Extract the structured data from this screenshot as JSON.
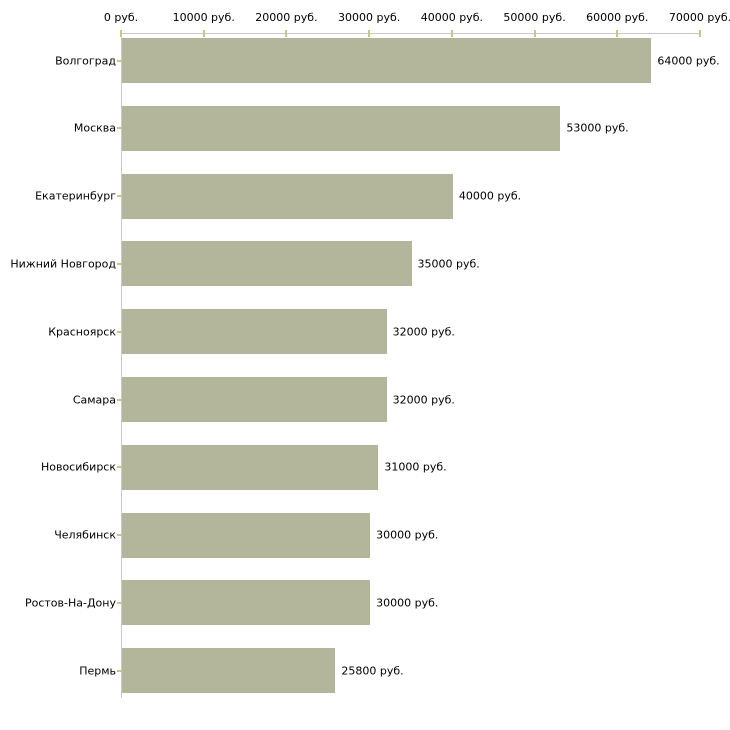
{
  "chart_data": {
    "type": "bar",
    "orientation": "horizontal",
    "title": "",
    "xlabel": "",
    "ylabel": "",
    "unit": "руб.",
    "categories": [
      "Волгоград",
      "Москва",
      "Екатеринбург",
      "Нижний Новгород",
      "Красноярск",
      "Самара",
      "Новосибирск",
      "Челябинск",
      "Ростов-На-Дону",
      "Пермь"
    ],
    "values": [
      64000,
      53000,
      40000,
      35000,
      32000,
      32000,
      31000,
      30000,
      30000,
      25800
    ],
    "value_labels": [
      "64000 руб.",
      "53000 руб.",
      "40000 руб.",
      "35000 руб.",
      "32000 руб.",
      "32000 руб.",
      "31000 руб.",
      "30000 руб.",
      "30000 руб.",
      "25800 руб."
    ],
    "xlim": [
      0,
      70000
    ],
    "x_ticks": [
      0,
      10000,
      20000,
      30000,
      40000,
      50000,
      60000,
      70000
    ],
    "x_tick_labels": [
      "0 руб.",
      "10000 руб.",
      "20000 руб.",
      "30000 руб.",
      "40000 руб.",
      "50000 руб.",
      "60000 руб.",
      "70000 руб."
    ],
    "grid": false,
    "legend": "none",
    "colors": {
      "bar_fill": "#b3b69b",
      "axis_line": "#c6c6c6",
      "tick_mark": "#c6c78f",
      "label_text": "#000000",
      "background": "#ffffff"
    }
  }
}
